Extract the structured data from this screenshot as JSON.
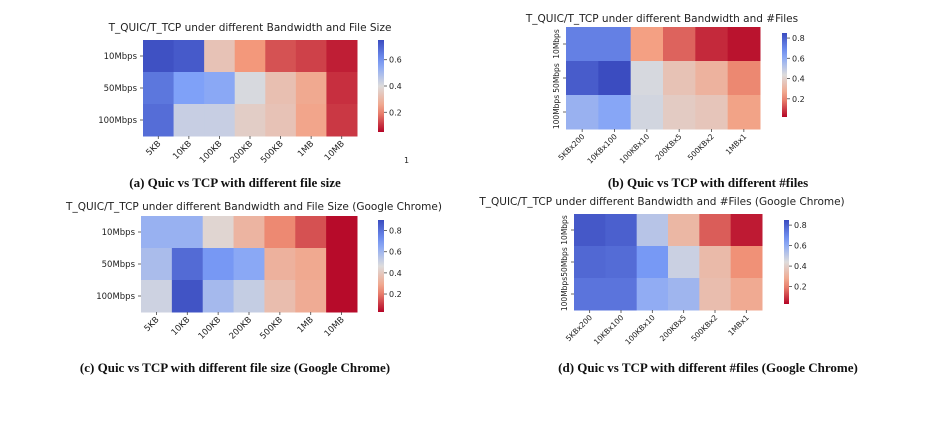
{
  "captions": {
    "a": "(a) Quic vs TCP with different file size",
    "b": "(b) Quic vs TCP with different #files",
    "c": "(c) Quic vs TCP with different file size (Google Chrome)",
    "d": "(d) Quic vs TCP with different #files (Google Chrome)"
  },
  "stray_mark": "1",
  "chart_data": [
    {
      "id": "a",
      "type": "heatmap",
      "title": "T_QUIC/T_TCP under different Bandwidth and File Size",
      "x": [
        "5KB",
        "10KB",
        "100KB",
        "200KB",
        "500KB",
        "1MB",
        "10MB"
      ],
      "y": [
        "10Mbps",
        "50Mbps",
        "100Mbps"
      ],
      "values": [
        [
          0.74,
          0.72,
          0.33,
          0.22,
          0.14,
          0.12,
          0.08
        ],
        [
          0.66,
          0.57,
          0.55,
          0.41,
          0.32,
          0.26,
          0.1
        ],
        [
          0.68,
          0.44,
          0.44,
          0.36,
          0.33,
          0.25,
          0.11
        ]
      ],
      "colorbar": {
        "min": 0.05,
        "max": 0.75,
        "ticks": [
          0.2,
          0.4,
          0.6
        ]
      },
      "colormap": "coolwarm_r"
    },
    {
      "id": "b",
      "type": "heatmap",
      "title": "T_QUIC/T_TCP under different Bandwidth and #Files",
      "x": [
        "5KBx200",
        "10KBx100",
        "100KBx10",
        "200KBx5",
        "500KBx2",
        "1MBx1"
      ],
      "y": [
        "10Mbps",
        "50Mbps",
        "100Mbps"
      ],
      "values": [
        [
          0.72,
          0.72,
          0.24,
          0.15,
          0.07,
          0.04
        ],
        [
          0.81,
          0.85,
          0.45,
          0.35,
          0.3,
          0.2
        ],
        [
          0.58,
          0.62,
          0.46,
          0.38,
          0.36,
          0.25
        ]
      ],
      "colorbar": {
        "min": 0.02,
        "max": 0.85,
        "ticks": [
          0.2,
          0.4,
          0.6,
          0.8
        ]
      },
      "colormap": "coolwarm_r"
    },
    {
      "id": "c",
      "type": "heatmap",
      "title": "T_QUIC/T_TCP under different Bandwidth and File Size (Google Chrome)",
      "x": [
        "5KB",
        "10KB",
        "100KB",
        "200KB",
        "500KB",
        "1MB",
        "10MB"
      ],
      "y": [
        "10Mbps",
        "50Mbps",
        "100Mbps"
      ],
      "values": [
        [
          0.62,
          0.62,
          0.44,
          0.33,
          0.22,
          0.14,
          0.04
        ],
        [
          0.58,
          0.82,
          0.7,
          0.65,
          0.32,
          0.29,
          0.04
        ],
        [
          0.5,
          0.88,
          0.59,
          0.52,
          0.36,
          0.3,
          0.04
        ]
      ],
      "colorbar": {
        "min": 0.03,
        "max": 0.9,
        "ticks": [
          0.2,
          0.4,
          0.6,
          0.8
        ]
      },
      "colormap": "coolwarm_r"
    },
    {
      "id": "d",
      "type": "heatmap",
      "title": "T_QUIC/T_TCP under different Bandwidth and #Files (Google Chrome)",
      "x": [
        "5KBx200",
        "10KBx100",
        "100KBx10",
        "200KBx5",
        "500KBx2",
        "1MBx1"
      ],
      "y": [
        "10Mbps",
        "50Mbps",
        "100Mbps"
      ],
      "values": [
        [
          0.82,
          0.8,
          0.52,
          0.32,
          0.15,
          0.06
        ],
        [
          0.78,
          0.77,
          0.66,
          0.48,
          0.33,
          0.22
        ],
        [
          0.75,
          0.75,
          0.6,
          0.57,
          0.34,
          0.28
        ]
      ],
      "colorbar": {
        "min": 0.03,
        "max": 0.85,
        "ticks": [
          0.2,
          0.4,
          0.6,
          0.8
        ]
      },
      "colormap": "coolwarm_r"
    }
  ]
}
